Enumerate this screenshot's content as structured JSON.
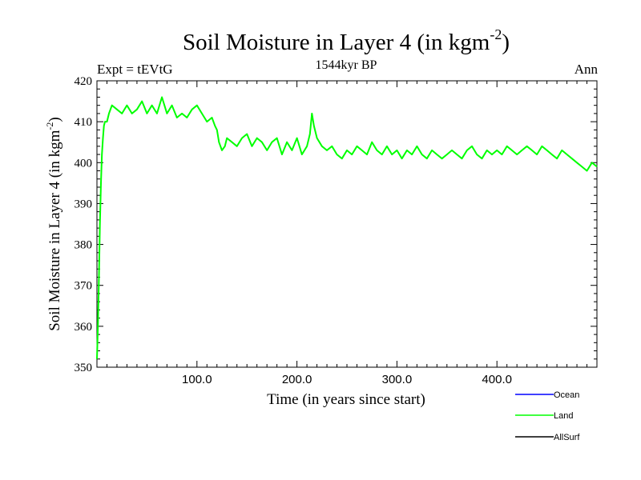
{
  "chart_data": {
    "type": "line",
    "title": "Soil Moisture in Layer 4 (in kgm",
    "title_sup": "-2",
    "title_close": ")",
    "subtitle_left": "Expt = tEVtG",
    "subtitle_center": "1544kyr BP",
    "subtitle_right": "Ann",
    "xlabel": "Time (in years since start)",
    "ylabel": "Soil Moisture in Layer 4 (in kgm",
    "ylabel_sup": "-2",
    "ylabel_close": ")",
    "xlim": [
      0,
      500
    ],
    "ylim": [
      350,
      420
    ],
    "x_ticks": [
      100,
      200,
      300,
      400
    ],
    "x_tick_labels": [
      "100.0",
      "200.0",
      "300.0",
      "400.0"
    ],
    "y_ticks": [
      350,
      360,
      370,
      380,
      390,
      400,
      410,
      420
    ],
    "y_tick_labels": [
      "350",
      "360",
      "370",
      "380",
      "390",
      "400",
      "410",
      "420"
    ],
    "series": [
      {
        "name": "Ocean",
        "color": "#0000ff",
        "x": [],
        "y": []
      },
      {
        "name": "Land",
        "color": "#00ff00",
        "x": [
          0,
          1,
          2,
          3,
          4,
          5,
          6,
          7,
          8,
          10,
          12,
          15,
          20,
          25,
          30,
          35,
          40,
          45,
          50,
          55,
          60,
          65,
          70,
          75,
          80,
          85,
          90,
          95,
          100,
          105,
          110,
          115,
          118,
          120,
          122,
          125,
          128,
          130,
          135,
          140,
          145,
          150,
          155,
          160,
          165,
          170,
          175,
          180,
          185,
          190,
          195,
          200,
          205,
          210,
          213,
          215,
          217,
          220,
          225,
          230,
          235,
          240,
          245,
          250,
          255,
          260,
          265,
          270,
          275,
          280,
          285,
          290,
          295,
          300,
          305,
          310,
          315,
          320,
          325,
          330,
          335,
          340,
          345,
          350,
          355,
          360,
          365,
          370,
          375,
          380,
          385,
          390,
          395,
          400,
          405,
          410,
          415,
          420,
          425,
          430,
          435,
          440,
          445,
          450,
          455,
          460,
          465,
          470,
          475,
          480,
          485,
          490,
          495,
          500
        ],
        "y": [
          352,
          360,
          372,
          385,
          395,
          402,
          406,
          409,
          410,
          410,
          412,
          414,
          413,
          412,
          414,
          412,
          413,
          415,
          412,
          414,
          412,
          416,
          412,
          414,
          411,
          412,
          411,
          413,
          414,
          412,
          410,
          411,
          409,
          408,
          405,
          403,
          404,
          406,
          405,
          404,
          406,
          407,
          404,
          406,
          405,
          403,
          405,
          406,
          402,
          405,
          403,
          406,
          402,
          404,
          407,
          412,
          409,
          406,
          404,
          403,
          404,
          402,
          401,
          403,
          402,
          404,
          403,
          402,
          405,
          403,
          402,
          404,
          402,
          403,
          401,
          403,
          402,
          404,
          402,
          401,
          403,
          402,
          401,
          402,
          403,
          402,
          401,
          403,
          404,
          402,
          401,
          403,
          402,
          403,
          402,
          404,
          403,
          402,
          403,
          404,
          403,
          402,
          404,
          403,
          402,
          401,
          403,
          402,
          401,
          400,
          399,
          398,
          400,
          399
        ]
      },
      {
        "name": "AllSurf",
        "color": "#000000",
        "x": [],
        "y": []
      }
    ]
  }
}
